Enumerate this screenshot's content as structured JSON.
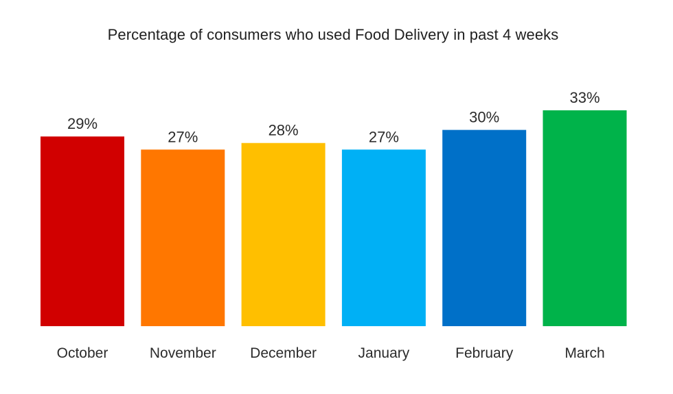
{
  "chart_data": {
    "type": "bar",
    "title": "Percentage of consumers who used Food Delivery in past 4 weeks",
    "categories": [
      "October",
      "November",
      "December",
      "January",
      "February",
      "March"
    ],
    "values": [
      29,
      27,
      28,
      27,
      30,
      33
    ],
    "value_labels": [
      "29%",
      "27%",
      "28%",
      "27%",
      "30%",
      "33%"
    ],
    "colors": [
      "#d10000",
      "#ff7700",
      "#ffbf00",
      "#00b0f5",
      "#0070c8",
      "#00b34a"
    ],
    "xlabel": "",
    "ylabel": "",
    "ylim": [
      0,
      33
    ],
    "grid": false,
    "legend": "none"
  }
}
